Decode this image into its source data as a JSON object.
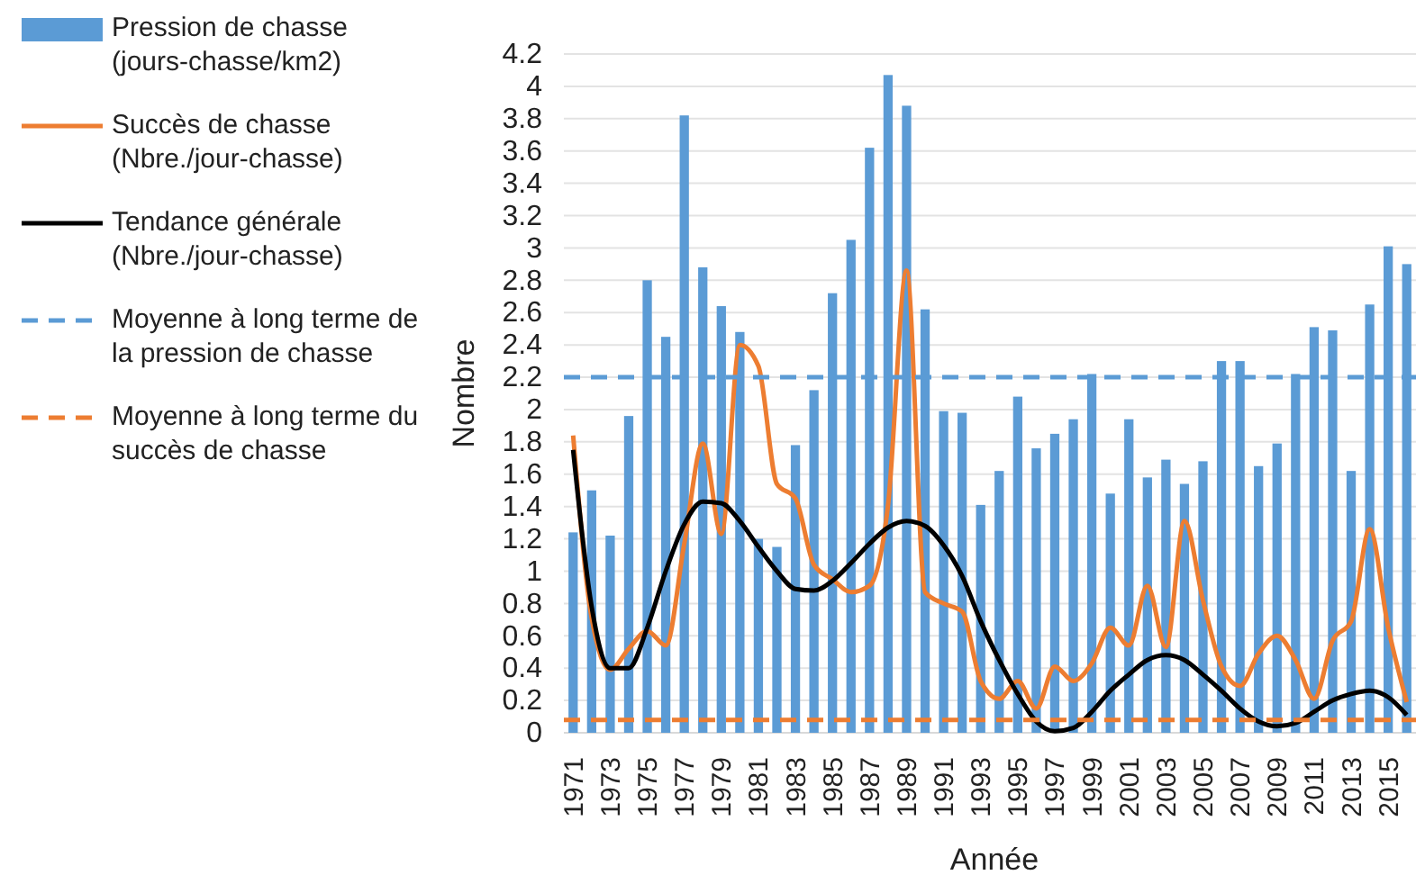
{
  "chart_data": {
    "type": "bar",
    "xlabel": "Année",
    "ylabel": "Nombre",
    "categories": [
      "1971",
      null,
      "1973",
      null,
      "1975",
      null,
      "1977",
      null,
      "1979",
      null,
      "1981",
      null,
      "1983",
      null,
      "1985",
      null,
      "1987",
      null,
      "1989",
      null,
      "1991",
      null,
      "1993",
      null,
      "1995",
      null,
      "1997",
      null,
      "1999",
      null,
      "2001",
      null,
      "2003",
      null,
      "2005",
      null,
      "2007",
      null,
      "2009",
      null,
      "2011",
      null,
      "2013",
      null,
      "2015",
      null
    ],
    "series": [
      {
        "name": "Pression de chasse (jours-chasse/km2)",
        "color": "#5b9bd5",
        "values": [
          1.24,
          1.5,
          1.22,
          1.96,
          2.8,
          2.45,
          3.82,
          2.88,
          2.64,
          2.48,
          1.2,
          1.15,
          1.78,
          2.12,
          2.72,
          3.05,
          3.62,
          4.07,
          3.88,
          2.62,
          1.99,
          1.98,
          1.41,
          1.62,
          2.08,
          1.76,
          1.85,
          1.94,
          2.22,
          1.48,
          1.94,
          1.58,
          1.69,
          1.54,
          1.68,
          2.3,
          2.3,
          1.65,
          1.79,
          2.22,
          2.51,
          2.49,
          1.62,
          2.65,
          3.01,
          2.9
        ]
      },
      {
        "name": "Succès de chasse (Nbre./jour-chasse)",
        "type": "line",
        "color": "#ed7d31",
        "values": [
          1.84,
          0.71,
          0.39,
          0.52,
          0.63,
          0.54,
          1.17,
          1.79,
          1.23,
          2.4,
          2.27,
          1.54,
          1.45,
          1.04,
          0.95,
          0.87,
          0.91,
          1.41,
          2.86,
          0.87,
          0.8,
          0.75,
          0.32,
          0.21,
          0.32,
          0.15,
          0.41,
          0.32,
          0.43,
          0.65,
          0.54,
          0.91,
          0.53,
          1.31,
          0.82,
          0.41,
          0.29,
          0.49,
          0.6,
          0.45,
          0.21,
          0.57,
          0.69,
          1.26,
          0.65,
          0.19
        ]
      },
      {
        "name": "Tendance générale (Nbre./jour-chasse)",
        "type": "line",
        "color": "#000000",
        "values": [
          1.75,
          0.78,
          0.4,
          0.4,
          0.65,
          1.0,
          1.29,
          1.43,
          1.42,
          1.31,
          1.15,
          1.0,
          0.89,
          0.88,
          0.94,
          1.05,
          1.17,
          1.27,
          1.31,
          1.28,
          1.16,
          0.97,
          0.69,
          0.45,
          0.24,
          0.07,
          0.01,
          0.03,
          0.13,
          0.26,
          0.36,
          0.45,
          0.48,
          0.45,
          0.36,
          0.26,
          0.15,
          0.07,
          0.04,
          0.06,
          0.13,
          0.2,
          0.24,
          0.26,
          0.22,
          0.11
        ]
      }
    ],
    "ref_lines": [
      {
        "axis": "y",
        "value": 2.2,
        "label": "Moyenne à long terme de la pression de chasse",
        "color": "#5b9bd5",
        "line_style": "dashed"
      },
      {
        "axis": "y",
        "value": 0.08,
        "label": "Moyenne à long terme du succès de chasse",
        "color": "#ed7d31",
        "line_style": "dashed"
      }
    ],
    "ylim": [
      0,
      4.2
    ],
    "yticks": [
      0,
      0.2,
      0.4,
      0.6,
      0.8,
      1,
      1.2,
      1.4,
      1.6,
      1.8,
      2,
      2.2,
      2.4,
      2.6,
      2.8,
      3,
      3.2,
      3.4,
      3.6,
      3.8,
      4,
      4.2
    ],
    "grid": "y",
    "legend": "left"
  }
}
